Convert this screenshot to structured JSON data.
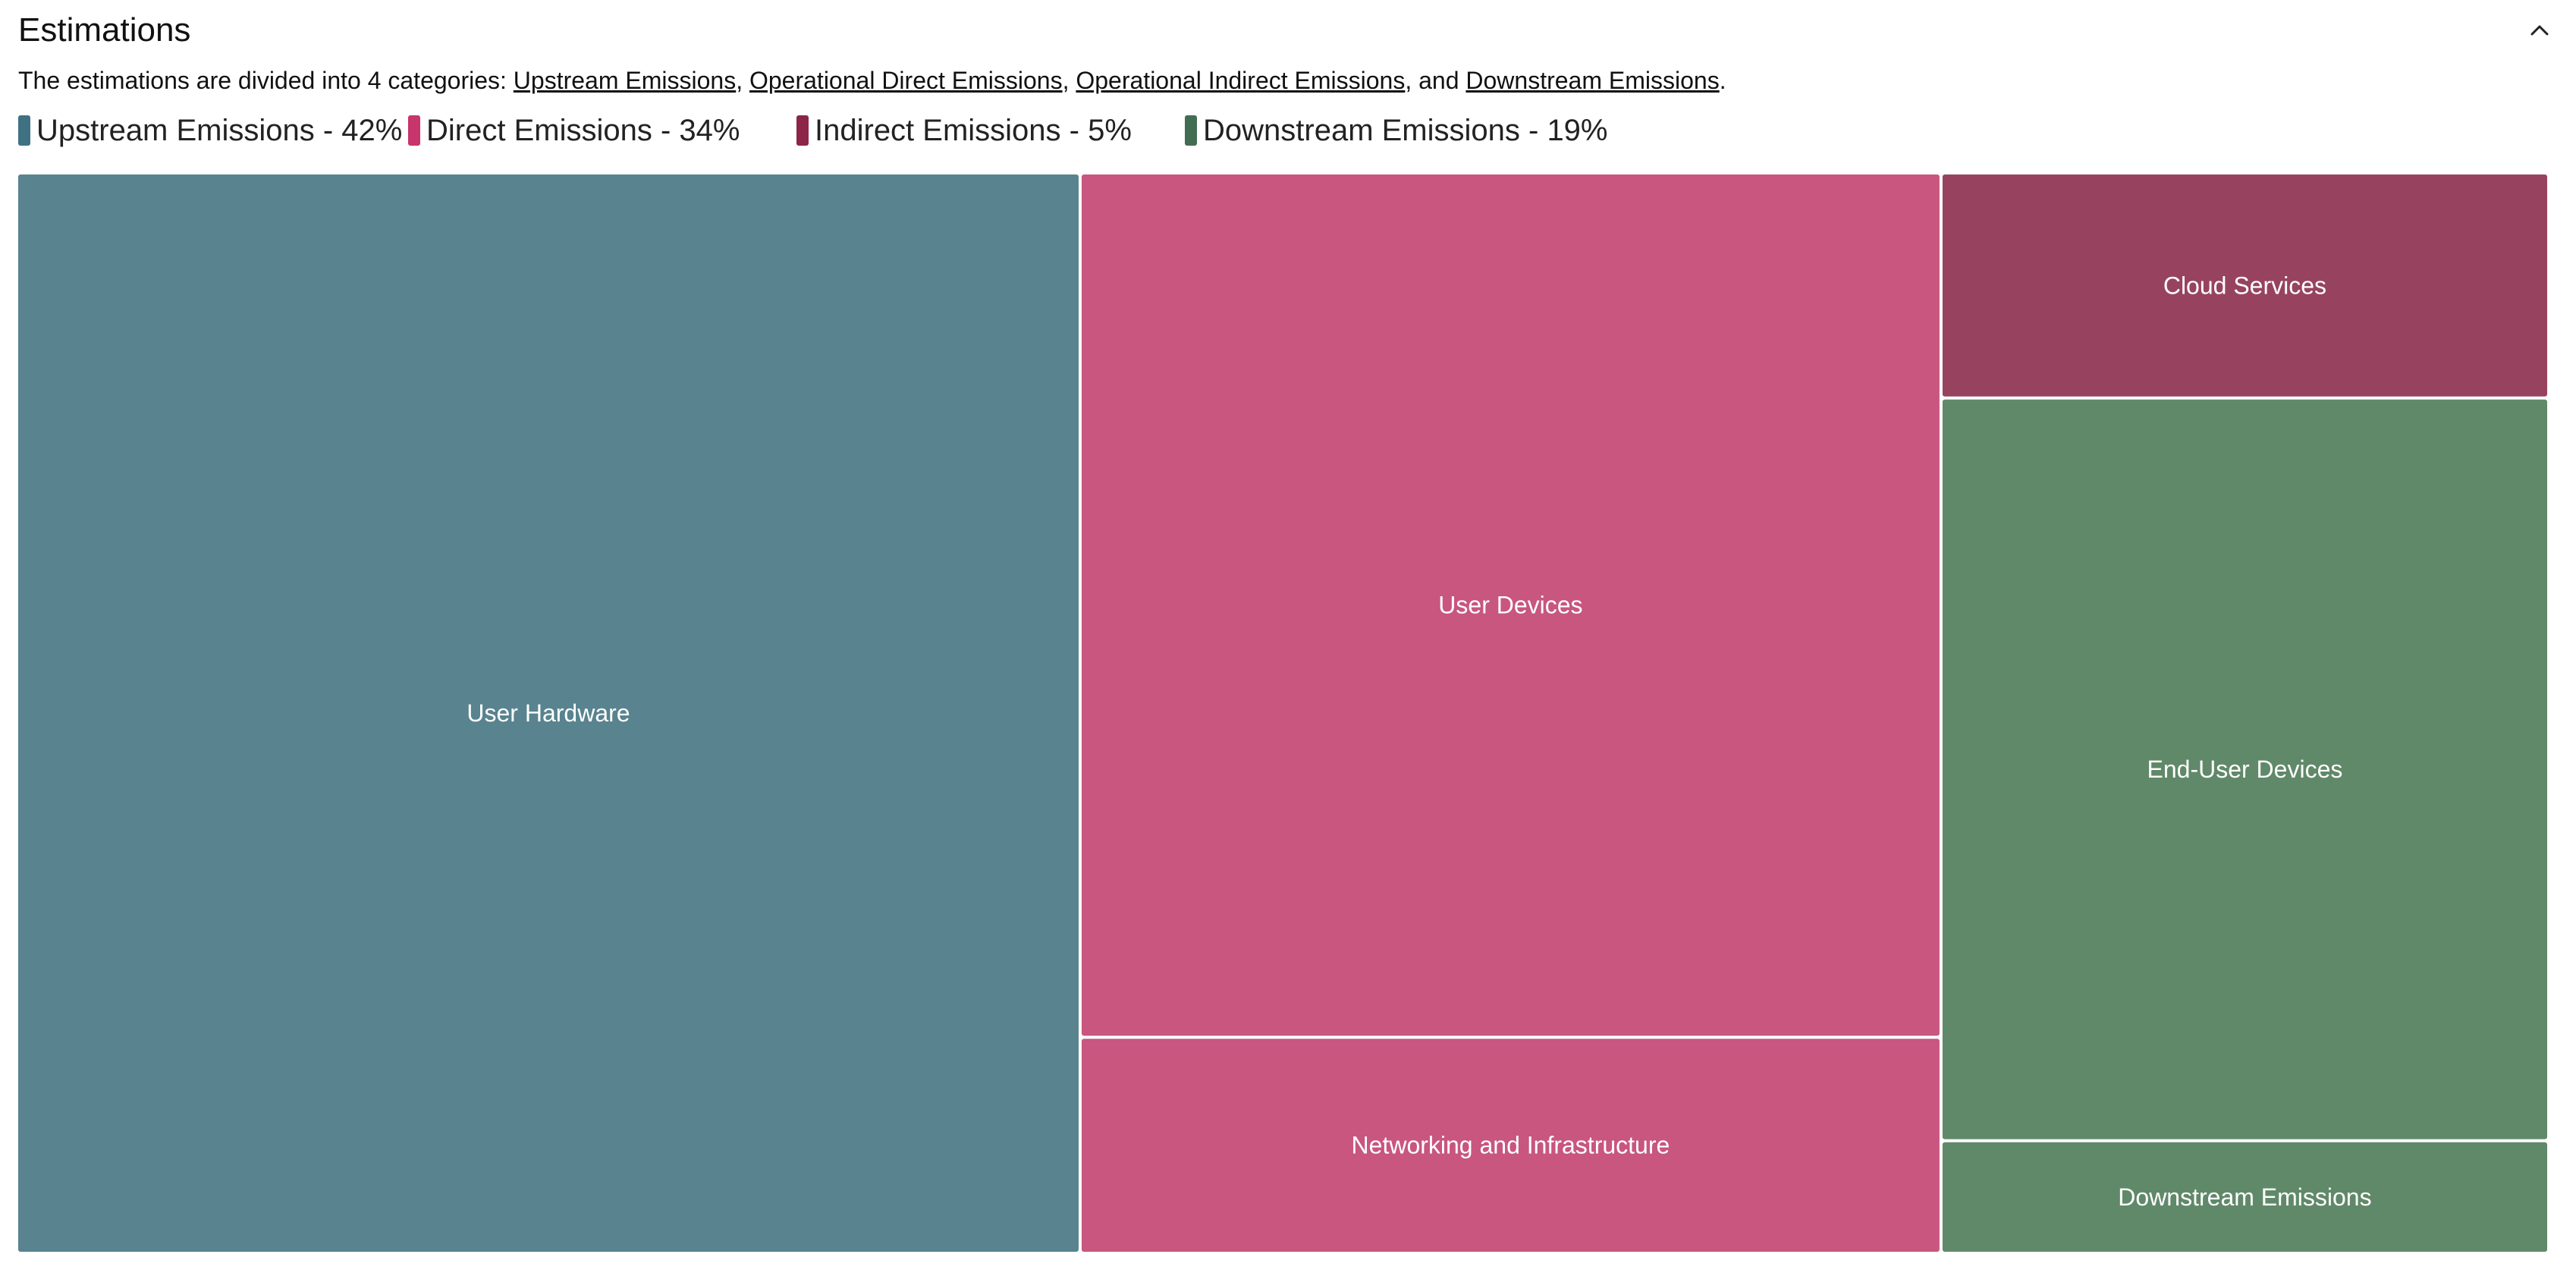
{
  "header": {
    "title": "Estimations"
  },
  "description": {
    "prefix": "The estimations are divided into 4 categories: ",
    "links": [
      "Upstream Emissions",
      "Operational Direct Emissions",
      "Operational Indirect Emissions",
      "Downstream Emissions"
    ],
    "sep1": ", ",
    "sep2": ", ",
    "sep3": ", and ",
    "suffix": "."
  },
  "legend": [
    {
      "label": "Upstream Emissions - 42%",
      "color": "#3f7183"
    },
    {
      "label": "Direct Emissions - 34%",
      "color": "#c8346c"
    },
    {
      "label": "Indirect Emissions - 5%",
      "color": "#8d2548"
    },
    {
      "label": "Downstream Emissions - 19%",
      "color": "#416d50"
    }
  ],
  "chart_data": {
    "type": "treemap",
    "unit": "percent",
    "nodes": [
      {
        "label": "User Hardware",
        "category": "Upstream Emissions",
        "value": 42,
        "color": "#58838f"
      },
      {
        "label": "User Devices",
        "category": "Direct Emissions",
        "value": 27.2,
        "color": "#c8567f"
      },
      {
        "label": "Networking and Infrastructure",
        "category": "Direct Emissions",
        "value": 6.8,
        "color": "#c8567f"
      },
      {
        "label": "Cloud Services",
        "category": "Indirect Emissions",
        "value": 5,
        "color": "#97435f"
      },
      {
        "label": "End-User Devices",
        "category": "Downstream Emissions",
        "value": 16.5,
        "color": "#608969"
      },
      {
        "label": "Downstream Emissions",
        "category": "Downstream Emissions",
        "value": 2.5,
        "color": "#608969"
      }
    ]
  }
}
